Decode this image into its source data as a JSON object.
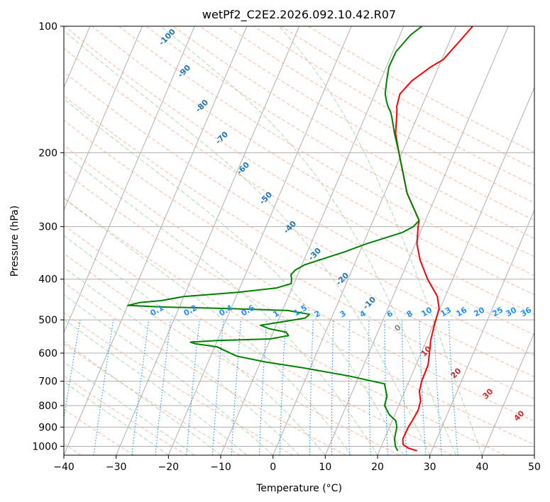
{
  "chart_data": {
    "type": "line",
    "title": "wetPf2_C2E2.2026.092.10.42.R07",
    "xlabel": "Temperature (°C)",
    "ylabel": "Pressure (hPa)",
    "xlim": [
      -40,
      50
    ],
    "ylim": [
      1050,
      100
    ],
    "y_scale": "log",
    "grid": true,
    "x_ticks": [
      -40,
      -30,
      -20,
      -10,
      0,
      10,
      20,
      30,
      40,
      50
    ],
    "y_ticks": [
      1000,
      900,
      800,
      700,
      600,
      500,
      400,
      300,
      200,
      100
    ],
    "series": [
      {
        "color": "#ff0000",
        "points": [
          {
            "p": 1025,
            "x": 27.2
          },
          {
            "p": 1010,
            "x": 25.3
          },
          {
            "p": 990,
            "x": 24.0
          },
          {
            "p": 960,
            "x": 23.5
          },
          {
            "p": 900,
            "x": 23.6
          },
          {
            "p": 860,
            "x": 23.9
          },
          {
            "p": 820,
            "x": 24.1
          },
          {
            "p": 780,
            "x": 23.8
          },
          {
            "p": 740,
            "x": 22.8
          },
          {
            "p": 700,
            "x": 22.4
          },
          {
            "p": 640,
            "x": 22.3
          },
          {
            "p": 600,
            "x": 21.6
          },
          {
            "p": 560,
            "x": 20.8
          },
          {
            "p": 520,
            "x": 20.3
          },
          {
            "p": 490,
            "x": 20.0
          },
          {
            "p": 470,
            "x": 19.8
          },
          {
            "p": 440,
            "x": 18.5
          },
          {
            "p": 400,
            "x": 15.2
          },
          {
            "p": 360,
            "x": 12.2
          },
          {
            "p": 330,
            "x": 10.3
          },
          {
            "p": 300,
            "x": 9.1
          },
          {
            "p": 290,
            "x": 8.8
          },
          {
            "p": 250,
            "x": 4.3
          },
          {
            "p": 200,
            "x": -0.6
          },
          {
            "p": 180,
            "x": -2.8
          },
          {
            "p": 160,
            "x": -4.3
          },
          {
            "p": 155,
            "x": -4.8
          },
          {
            "p": 145,
            "x": -5.2
          },
          {
            "p": 135,
            "x": -4.0
          },
          {
            "p": 125,
            "x": -1.5
          },
          {
            "p": 120,
            "x": 0.3
          },
          {
            "p": 110,
            "x": 1.7
          },
          {
            "p": 100,
            "x": 3.2
          }
        ]
      },
      {
        "color": "#008000",
        "points": [
          {
            "p": 1025,
            "x": 23.5
          },
          {
            "p": 1000,
            "x": 22.7
          },
          {
            "p": 960,
            "x": 21.9
          },
          {
            "p": 900,
            "x": 21.4
          },
          {
            "p": 870,
            "x": 20.7
          },
          {
            "p": 840,
            "x": 18.9
          },
          {
            "p": 800,
            "x": 17.3
          },
          {
            "p": 760,
            "x": 17.0
          },
          {
            "p": 710,
            "x": 15.5
          },
          {
            "p": 680,
            "x": 8.0
          },
          {
            "p": 650,
            "x": -1.5
          },
          {
            "p": 630,
            "x": -9.0
          },
          {
            "p": 610,
            "x": -15.0
          },
          {
            "p": 590,
            "x": -18.0
          },
          {
            "p": 580,
            "x": -19.5
          },
          {
            "p": 570,
            "x": -24.0
          },
          {
            "p": 565,
            "x": -25.0
          },
          {
            "p": 560,
            "x": -20.0
          },
          {
            "p": 555,
            "x": -10.0
          },
          {
            "p": 545,
            "x": -6.8
          },
          {
            "p": 535,
            "x": -7.5
          },
          {
            "p": 525,
            "x": -11.0
          },
          {
            "p": 515,
            "x": -13.0
          },
          {
            "p": 505,
            "x": -9.0
          },
          {
            "p": 495,
            "x": -5.0
          },
          {
            "p": 485,
            "x": -4.5
          },
          {
            "p": 475,
            "x": -9.0
          },
          {
            "p": 470,
            "x": -20.0
          },
          {
            "p": 466,
            "x": -33.0
          },
          {
            "p": 462,
            "x": -40.0
          },
          {
            "p": 455,
            "x": -38.0
          },
          {
            "p": 450,
            "x": -34.0
          },
          {
            "p": 440,
            "x": -30.0
          },
          {
            "p": 430,
            "x": -20.0
          },
          {
            "p": 420,
            "x": -13.0
          },
          {
            "p": 410,
            "x": -10.5
          },
          {
            "p": 400,
            "x": -10.8
          },
          {
            "p": 390,
            "x": -11.3
          },
          {
            "p": 380,
            "x": -10.8
          },
          {
            "p": 370,
            "x": -9.5
          },
          {
            "p": 360,
            "x": -7.0
          },
          {
            "p": 345,
            "x": -3.0
          },
          {
            "p": 330,
            "x": 0.5
          },
          {
            "p": 310,
            "x": 6.5
          },
          {
            "p": 300,
            "x": 8.2
          },
          {
            "p": 290,
            "x": 8.8
          },
          {
            "p": 250,
            "x": 4.3
          },
          {
            "p": 200,
            "x": -0.6
          },
          {
            "p": 180,
            "x": -3.0
          },
          {
            "p": 165,
            "x": -4.8
          },
          {
            "p": 160,
            "x": -5.5
          },
          {
            "p": 155,
            "x": -6.5
          },
          {
            "p": 150,
            "x": -7.3
          },
          {
            "p": 145,
            "x": -8.0
          },
          {
            "p": 135,
            "x": -8.8
          },
          {
            "p": 125,
            "x": -9.5
          },
          {
            "p": 115,
            "x": -9.4
          },
          {
            "p": 105,
            "x": -8.0
          },
          {
            "p": 100,
            "x": -6.5
          }
        ]
      }
    ],
    "dry_adiabat_labels": [
      "-100",
      "-90",
      "-80",
      "-70",
      "-60",
      "-50",
      "-40",
      "-30",
      "-20",
      "-10"
    ],
    "moist_adiabat_labels": [
      "0",
      "10",
      "20",
      "30",
      "40"
    ],
    "mixing_ratio_labels": [
      "0.1",
      "0.2",
      "0.4",
      "0.6",
      "1",
      "1.5",
      "2",
      "3",
      "4",
      "6",
      "8",
      "10",
      "13",
      "16",
      "20",
      "25",
      "30",
      "36"
    ]
  }
}
